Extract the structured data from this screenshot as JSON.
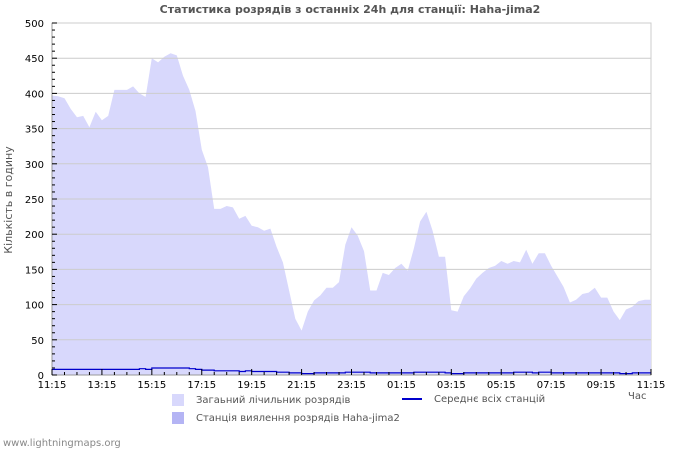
{
  "title": "Статистика розрядів з останніх 24h для станції: Haha-jima2",
  "footer": "www.lightningmaps.org",
  "legend": {
    "total": "Загаьний лічильник розрядів",
    "station": "Станція виялення розрядів Haha-jima2",
    "average": "Середнє всіх станцій"
  },
  "colors": {
    "total_fill": "#d8d8fc",
    "station_fill": "#b4b4f4",
    "average_line": "#0000cc",
    "grid": "#cccccc"
  },
  "chart_data": {
    "type": "area",
    "title": "Статистика розрядів з останніх 24h для станції: Haha-jima2",
    "xlabel": "Час",
    "ylabel": "Кількість в годину",
    "ylim": [
      0,
      500
    ],
    "yticks": [
      0,
      50,
      100,
      150,
      200,
      250,
      300,
      350,
      400,
      450,
      500
    ],
    "xticks": [
      "11:15",
      "13:15",
      "15:15",
      "17:15",
      "19:15",
      "21:15",
      "23:15",
      "01:15",
      "03:15",
      "05:15",
      "07:15",
      "09:15",
      "11:15"
    ],
    "grid": true,
    "legend_position": "bottom",
    "series": [
      {
        "name": "Загаьний лічильник розрядів",
        "type": "area",
        "values": [
          397,
          396,
          393,
          378,
          366,
          368,
          352,
          374,
          362,
          368,
          405,
          405,
          405,
          410,
          400,
          395,
          450,
          444,
          452,
          457,
          454,
          425,
          405,
          375,
          320,
          295,
          236,
          236,
          240,
          238,
          222,
          226,
          212,
          210,
          205,
          208,
          182,
          160,
          120,
          80,
          63,
          90,
          106,
          113,
          124,
          124,
          132,
          185,
          210,
          198,
          176,
          120,
          120,
          145,
          142,
          152,
          158,
          148,
          180,
          218,
          232,
          205,
          168,
          168,
          92,
          90,
          112,
          123,
          137,
          145,
          152,
          155,
          162,
          158,
          162,
          160,
          178,
          158,
          173,
          173,
          155,
          140,
          125,
          103,
          107,
          115,
          117,
          124,
          110,
          110,
          90,
          78,
          93,
          97,
          105,
          107,
          107
        ],
        "color": "#d8d8fc"
      },
      {
        "name": "Станція виялення розрядів Haha-jima2",
        "type": "area",
        "values": [
          0,
          0,
          0,
          0,
          0,
          0,
          0,
          0,
          0,
          0,
          0,
          0,
          0,
          0,
          0,
          0,
          0,
          0,
          0,
          0,
          0,
          0,
          0,
          0,
          0,
          0,
          0,
          0,
          0,
          0,
          0,
          0,
          0,
          0,
          0,
          0,
          0,
          0,
          0,
          0,
          0,
          0,
          0,
          0,
          0,
          0,
          0,
          0,
          0,
          0,
          0,
          0,
          0,
          0,
          0,
          0,
          0,
          0,
          0,
          0,
          0,
          0,
          0,
          0,
          0,
          0,
          0,
          0,
          0,
          0,
          0,
          0,
          0,
          0,
          0,
          0,
          0,
          0,
          0,
          0,
          0,
          0,
          0,
          0,
          0,
          0,
          0,
          0,
          0,
          0,
          0,
          0,
          0,
          0,
          0,
          0,
          0
        ],
        "color": "#b4b4f4"
      },
      {
        "name": "Середнє всіх станцій",
        "type": "line",
        "values": [
          8,
          8,
          8,
          8,
          8,
          8,
          8,
          8,
          8,
          8,
          8,
          8,
          8,
          8,
          9,
          8,
          10,
          10,
          10,
          10,
          10,
          10,
          9,
          8,
          7,
          7,
          6,
          6,
          6,
          6,
          5,
          6,
          5,
          5,
          5,
          5,
          4,
          4,
          3,
          3,
          2,
          2,
          3,
          3,
          3,
          3,
          3,
          4,
          4,
          4,
          4,
          3,
          3,
          3,
          3,
          3,
          3,
          3,
          4,
          4,
          4,
          4,
          4,
          3,
          2,
          2,
          3,
          3,
          3,
          3,
          3,
          3,
          3,
          3,
          4,
          4,
          4,
          3,
          4,
          4,
          3,
          3,
          3,
          3,
          3,
          3,
          3,
          3,
          3,
          3,
          3,
          2,
          2,
          3,
          3,
          3,
          3
        ],
        "color": "#0000cc"
      }
    ]
  }
}
